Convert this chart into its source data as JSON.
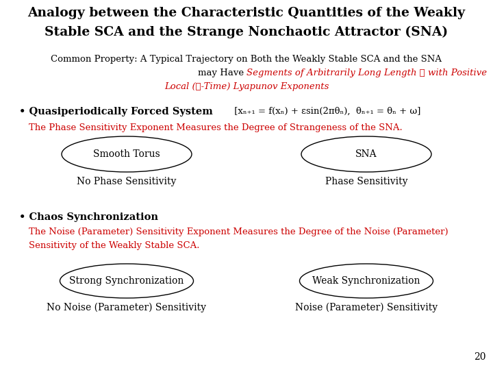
{
  "title_line1": "Analogy between the Characteristic Quantities of the Weakly",
  "title_line2": "Stable SCA and the Strange Nonchaotic Attractor (SNA)",
  "common_line1": "Common Property: A Typical Trajectory on Both the Weakly Stable SCA and the SNA",
  "common_line2_black": "may Have ",
  "common_line2_red": "Segments of Arbitrarily Long Length ℳ with Positive",
  "common_line3_red": "Local (ℳ-Time) Lyapunov Exponents",
  "bullet1_bold": "• Quasiperiodically Forced System",
  "bullet1_formula": " [xₙ₊₁ = f(xₙ) + εsin(2πθₙ),  θₙ₊₁ = θₙ + ω]",
  "phase_red": "The Phase Sensitivity Exponent Measures the Degree of Strangeness of the SNA.",
  "ellipse1_label": "Smooth Torus",
  "ellipse1_sub": "No Phase Sensitivity",
  "ellipse2_label": "SNA",
  "ellipse2_sub": "Phase Sensitivity",
  "bullet2_bold": "• Chaos Synchronization",
  "noise_red1": "The Noise (Parameter) Sensitivity Exponent Measures the Degree of the Noise (Parameter)",
  "noise_red2": "Sensitivity of the Weakly Stable SCA.",
  "ellipse3_label": "Strong Synchronization",
  "ellipse3_sub": "No Noise (Parameter) Sensitivity",
  "ellipse4_label": "Weak Synchronization",
  "ellipse4_sub": "Noise (Parameter) Sensitivity",
  "page_number": "20",
  "bg_color": "#ffffff",
  "black": "#000000",
  "red": "#cc0000",
  "title_fs": 13.5,
  "body_fs": 9.5,
  "bullet_fs": 10.5,
  "ellipse_fs": 10,
  "sub_fs": 10
}
